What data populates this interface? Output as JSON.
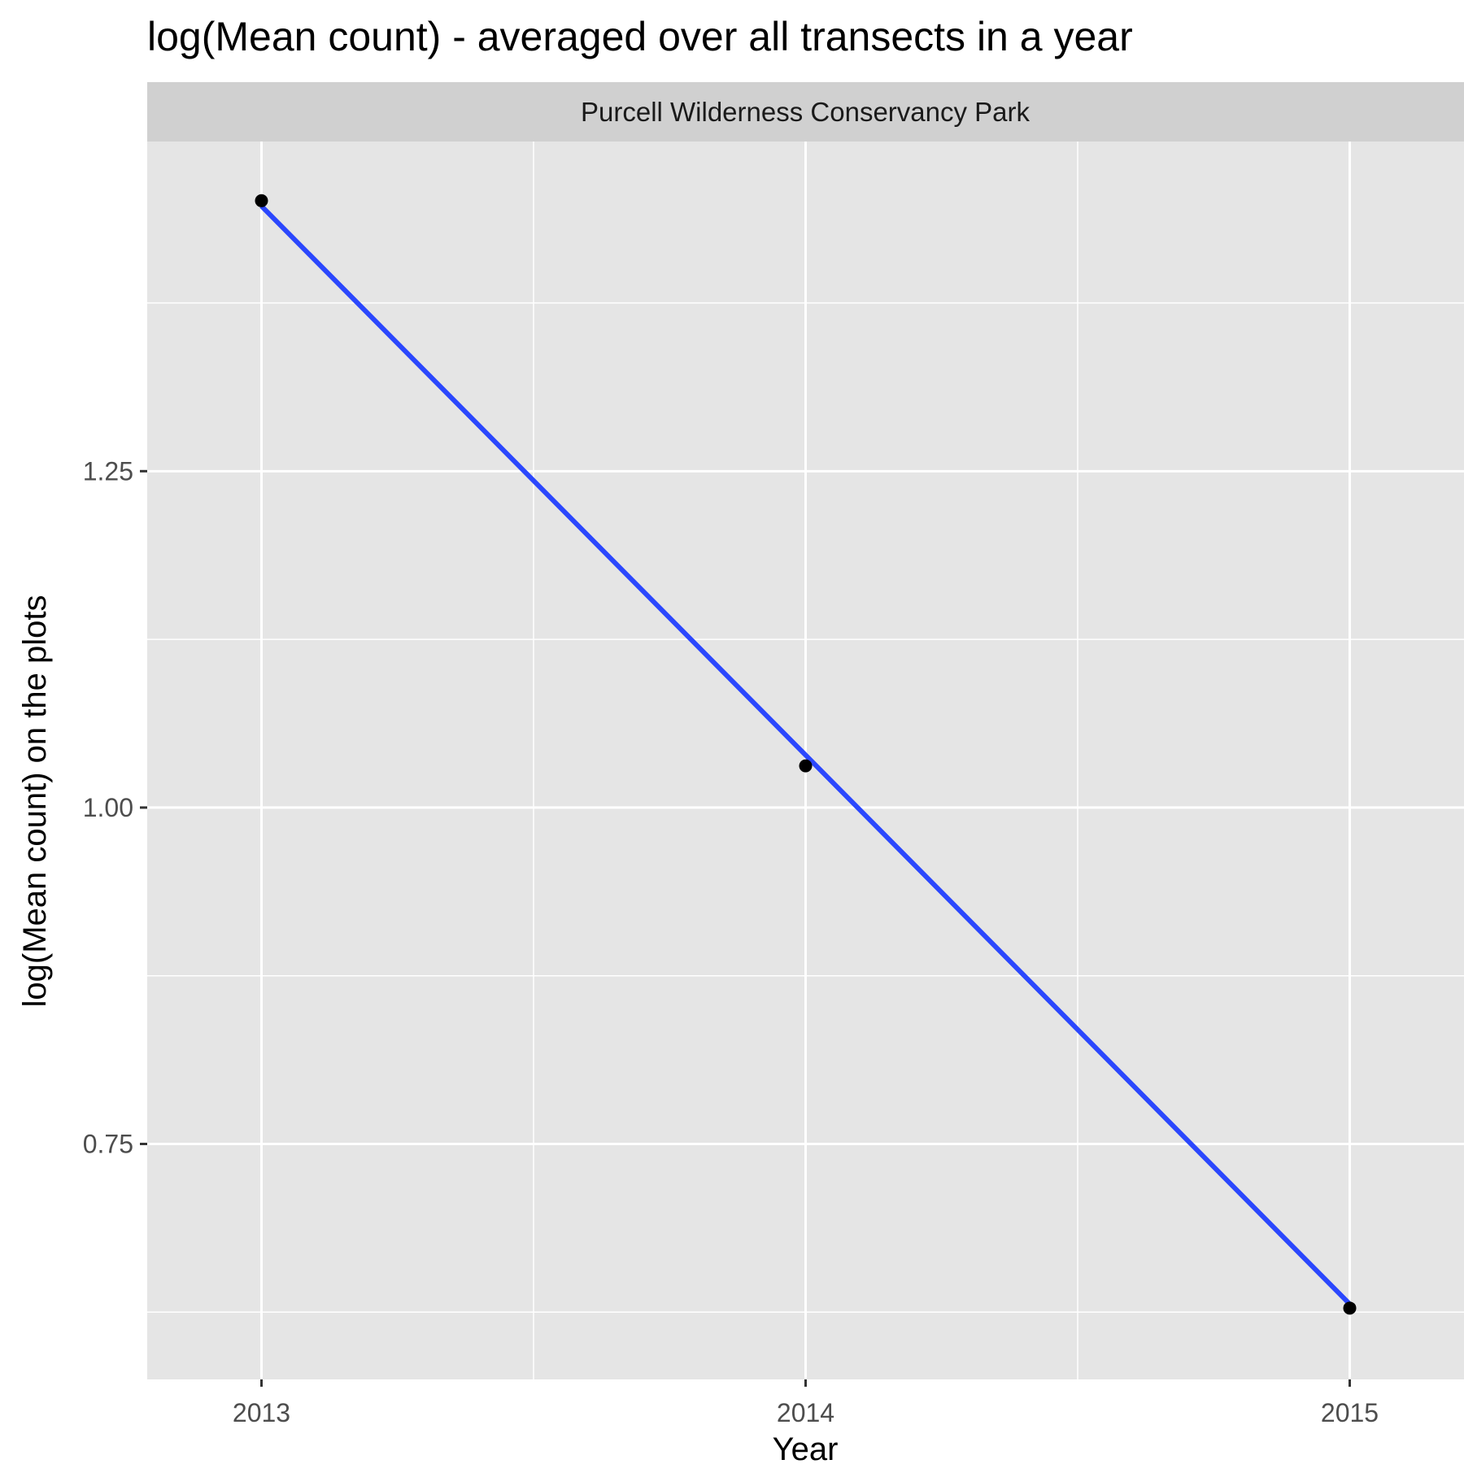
{
  "chart_data": {
    "type": "line",
    "title": "log(Mean count) - averaged over all transects in a year",
    "facet": "Purcell Wilderness Conservancy Park",
    "xlabel": "Year",
    "ylabel": "log(Mean count) on the plots",
    "x_ticks": [
      "2013",
      "2014",
      "2015"
    ],
    "y_ticks": [
      "0.75",
      "1.00",
      "1.25"
    ],
    "x_tick_values": [
      2013,
      2014,
      2015
    ],
    "y_tick_values": [
      0.75,
      1.0,
      1.25
    ],
    "xlim": [
      2012.79,
      2015.21
    ],
    "ylim": [
      0.575,
      1.495
    ],
    "grid": true,
    "points": {
      "x": [
        2013,
        2014,
        2015
      ],
      "y": [
        1.451,
        1.031,
        0.628
      ]
    },
    "fit_line": {
      "x": [
        2013,
        2015
      ],
      "y": [
        1.447,
        0.631
      ]
    },
    "colors": {
      "panel_background": "#e5e5e5",
      "strip_background": "#d0d0d0",
      "gridline": "#ffffff",
      "fit_line": "#2b47fd",
      "point": "#000000"
    }
  }
}
